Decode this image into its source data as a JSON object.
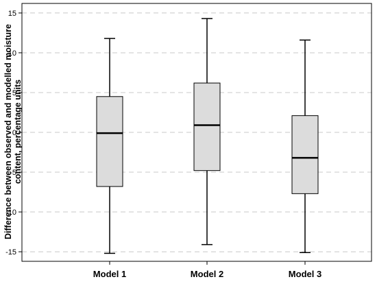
{
  "chart_data": {
    "type": "boxplot",
    "categories": [
      "Model 1",
      "Model 2",
      "Model 3"
    ],
    "boxes": [
      {
        "name": "Model 1",
        "min": -15.2,
        "q1": -6.8,
        "median": -0.1,
        "q3": 4.5,
        "max": 11.8
      },
      {
        "name": "Model 2",
        "min": -14.1,
        "q1": -4.8,
        "median": 0.9,
        "q3": 6.2,
        "max": 14.3
      },
      {
        "name": "Model 3",
        "min": -15.1,
        "q1": -7.7,
        "median": -3.2,
        "q3": 2.1,
        "max": 11.6
      }
    ],
    "xlabel": "",
    "ylabel_lines": [
      "Difference between observed and modelled moisture",
      "content, percentage units"
    ],
    "ylim": [
      -16.2,
      16.2
    ],
    "yticks": [
      15,
      10,
      5,
      0,
      -5,
      -10,
      -15
    ],
    "ytick_labels": [
      "15",
      "10",
      "5",
      "0",
      "-5",
      "-10",
      "-15"
    ],
    "grid": "horizontal-dashed",
    "colors": {
      "box_fill": "#dcdcdc",
      "stroke": "#000000",
      "grid": "#c8c8c8"
    }
  }
}
